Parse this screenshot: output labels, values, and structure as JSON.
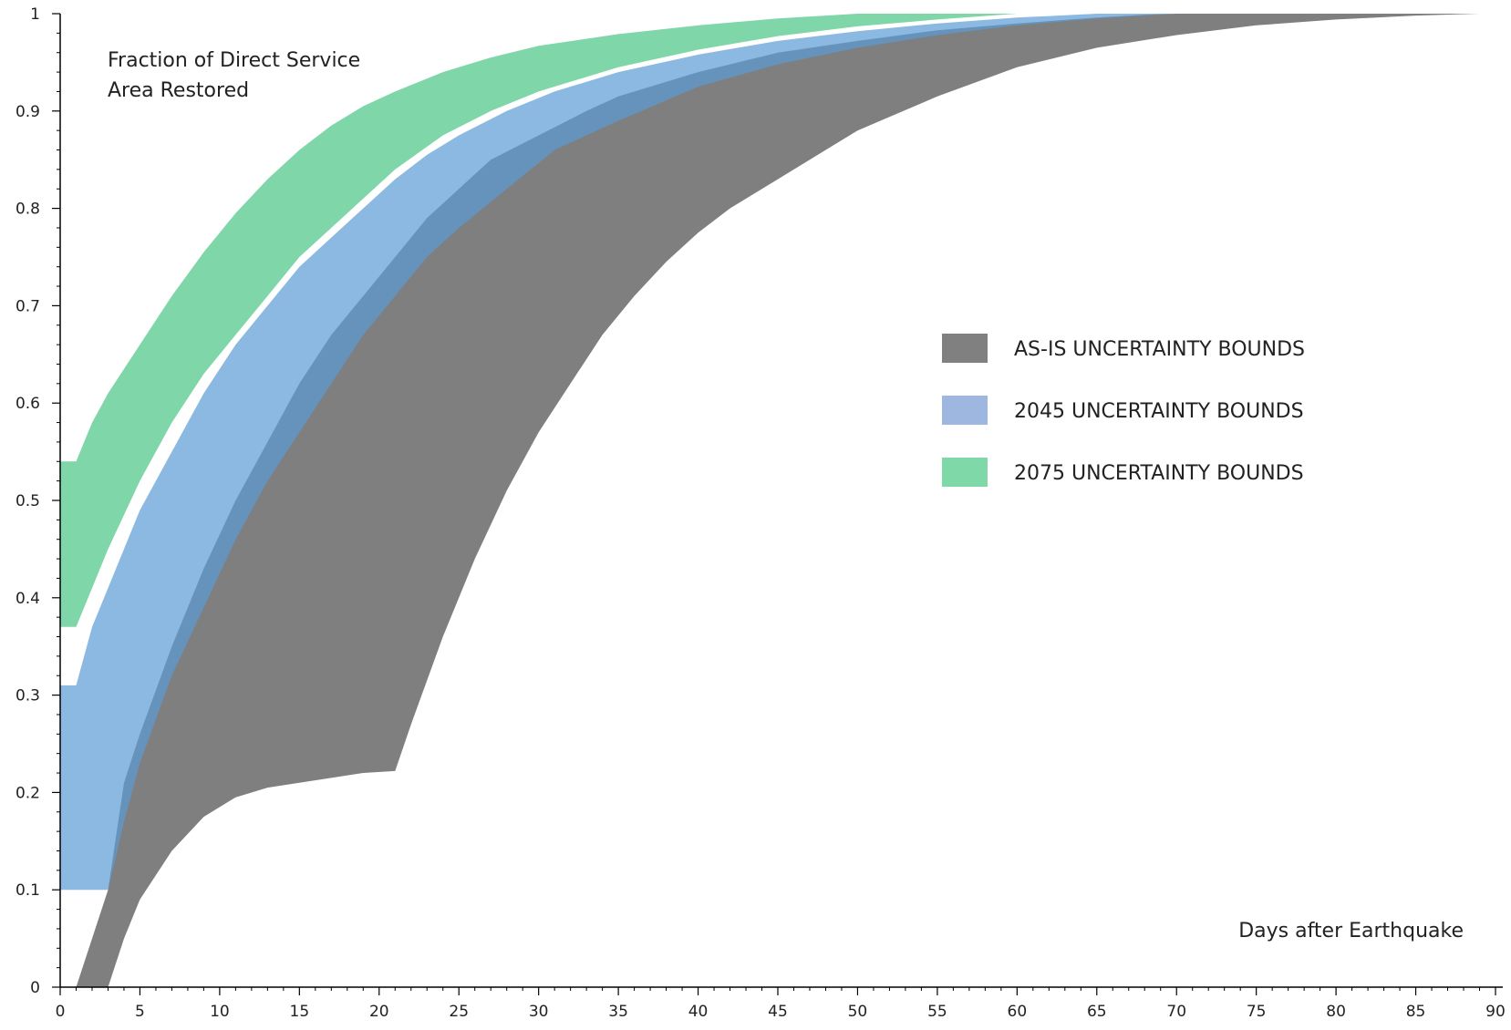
{
  "chart_data": {
    "type": "area",
    "ylabel_lines": [
      "Fraction of Direct Service",
      "Area Restored"
    ],
    "xlabel": "Days after Earthquake",
    "xlim": [
      0,
      90
    ],
    "ylim": [
      0,
      1
    ],
    "x_ticks": [
      0,
      5,
      10,
      15,
      20,
      25,
      30,
      35,
      40,
      45,
      50,
      55,
      60,
      65,
      70,
      75,
      80,
      85,
      90
    ],
    "y_ticks": [
      0,
      0.1,
      0.2,
      0.3,
      0.4,
      0.5,
      0.6,
      0.7,
      0.8,
      0.9,
      1
    ],
    "y_tick_labels": [
      "0",
      "0.1",
      "0.2",
      "0.3",
      "0.4",
      "0.5",
      "0.6",
      "0.7",
      "0.8",
      "0.9",
      "1"
    ],
    "grid": false,
    "legend_position": "right-center",
    "series": [
      {
        "name": "AS-IS UNCERTAINTY BOUNDS",
        "color": "#7f7f7f",
        "upper": [
          [
            1,
            0
          ],
          [
            3,
            0.1
          ],
          [
            4,
            0.21
          ],
          [
            5,
            0.26
          ],
          [
            7,
            0.35
          ],
          [
            9,
            0.43
          ],
          [
            11,
            0.5
          ],
          [
            13,
            0.56
          ],
          [
            15,
            0.62
          ],
          [
            17,
            0.67
          ],
          [
            19,
            0.71
          ],
          [
            21,
            0.75
          ],
          [
            23,
            0.79
          ],
          [
            25,
            0.82
          ],
          [
            27,
            0.85
          ],
          [
            30,
            0.875
          ],
          [
            33,
            0.9
          ],
          [
            35,
            0.915
          ],
          [
            40,
            0.94
          ],
          [
            45,
            0.96
          ],
          [
            50,
            0.972
          ],
          [
            55,
            0.983
          ],
          [
            60,
            0.99
          ],
          [
            65,
            0.996
          ],
          [
            68,
            0.999
          ],
          [
            70,
            1
          ]
        ],
        "lower": [
          [
            1,
            0
          ],
          [
            3,
            0
          ],
          [
            4,
            0.05
          ],
          [
            5,
            0.09
          ],
          [
            7,
            0.14
          ],
          [
            9,
            0.175
          ],
          [
            11,
            0.195
          ],
          [
            13,
            0.205
          ],
          [
            15,
            0.21
          ],
          [
            17,
            0.215
          ],
          [
            19,
            0.22
          ],
          [
            21,
            0.222
          ],
          [
            22,
            0.27
          ],
          [
            24,
            0.36
          ],
          [
            26,
            0.44
          ],
          [
            28,
            0.51
          ],
          [
            30,
            0.57
          ],
          [
            32,
            0.62
          ],
          [
            34,
            0.67
          ],
          [
            36,
            0.71
          ],
          [
            38,
            0.745
          ],
          [
            40,
            0.775
          ],
          [
            42,
            0.8
          ],
          [
            45,
            0.83
          ],
          [
            48,
            0.86
          ],
          [
            50,
            0.88
          ],
          [
            55,
            0.915
          ],
          [
            60,
            0.945
          ],
          [
            65,
            0.965
          ],
          [
            70,
            0.978
          ],
          [
            75,
            0.988
          ],
          [
            80,
            0.994
          ],
          [
            85,
            0.998
          ],
          [
            89,
            1
          ]
        ]
      },
      {
        "name": "2045 UNCERTAINTY BOUNDS",
        "color": "#5b9bd5",
        "upper": [
          [
            0,
            0.31
          ],
          [
            1,
            0.31
          ],
          [
            2,
            0.37
          ],
          [
            3,
            0.41
          ],
          [
            5,
            0.49
          ],
          [
            7,
            0.55
          ],
          [
            9,
            0.61
          ],
          [
            11,
            0.66
          ],
          [
            13,
            0.7
          ],
          [
            15,
            0.74
          ],
          [
            17,
            0.77
          ],
          [
            19,
            0.8
          ],
          [
            21,
            0.83
          ],
          [
            23,
            0.855
          ],
          [
            25,
            0.875
          ],
          [
            28,
            0.9
          ],
          [
            31,
            0.92
          ],
          [
            35,
            0.94
          ],
          [
            40,
            0.958
          ],
          [
            45,
            0.972
          ],
          [
            50,
            0.982
          ],
          [
            55,
            0.99
          ],
          [
            60,
            0.996
          ],
          [
            65,
            1
          ]
        ],
        "lower": [
          [
            0,
            0.1
          ],
          [
            3,
            0.1
          ],
          [
            4,
            0.17
          ],
          [
            5,
            0.23
          ],
          [
            7,
            0.32
          ],
          [
            9,
            0.39
          ],
          [
            11,
            0.46
          ],
          [
            13,
            0.52
          ],
          [
            15,
            0.57
          ],
          [
            17,
            0.62
          ],
          [
            19,
            0.67
          ],
          [
            21,
            0.71
          ],
          [
            23,
            0.75
          ],
          [
            25,
            0.78
          ],
          [
            28,
            0.82
          ],
          [
            31,
            0.86
          ],
          [
            35,
            0.89
          ],
          [
            40,
            0.925
          ],
          [
            45,
            0.948
          ],
          [
            50,
            0.965
          ],
          [
            55,
            0.978
          ],
          [
            60,
            0.988
          ],
          [
            65,
            0.995
          ],
          [
            70,
            1
          ]
        ]
      },
      {
        "name": "2075 UNCERTAINTY BOUNDS",
        "color": "#48c485",
        "upper": [
          [
            0,
            0.54
          ],
          [
            1,
            0.54
          ],
          [
            2,
            0.58
          ],
          [
            3,
            0.61
          ],
          [
            5,
            0.66
          ],
          [
            7,
            0.71
          ],
          [
            9,
            0.755
          ],
          [
            11,
            0.795
          ],
          [
            13,
            0.83
          ],
          [
            15,
            0.86
          ],
          [
            17,
            0.885
          ],
          [
            19,
            0.905
          ],
          [
            21,
            0.92
          ],
          [
            24,
            0.94
          ],
          [
            27,
            0.955
          ],
          [
            30,
            0.967
          ],
          [
            35,
            0.979
          ],
          [
            40,
            0.988
          ],
          [
            45,
            0.995
          ],
          [
            50,
            1
          ]
        ],
        "lower": [
          [
            0,
            0.37
          ],
          [
            1,
            0.37
          ],
          [
            2,
            0.41
          ],
          [
            3,
            0.45
          ],
          [
            5,
            0.52
          ],
          [
            7,
            0.58
          ],
          [
            9,
            0.63
          ],
          [
            11,
            0.67
          ],
          [
            13,
            0.71
          ],
          [
            15,
            0.75
          ],
          [
            17,
            0.78
          ],
          [
            19,
            0.81
          ],
          [
            21,
            0.84
          ],
          [
            24,
            0.875
          ],
          [
            27,
            0.9
          ],
          [
            30,
            0.92
          ],
          [
            35,
            0.945
          ],
          [
            40,
            0.963
          ],
          [
            45,
            0.977
          ],
          [
            50,
            0.987
          ],
          [
            55,
            0.994
          ],
          [
            60,
            1
          ]
        ]
      }
    ]
  }
}
